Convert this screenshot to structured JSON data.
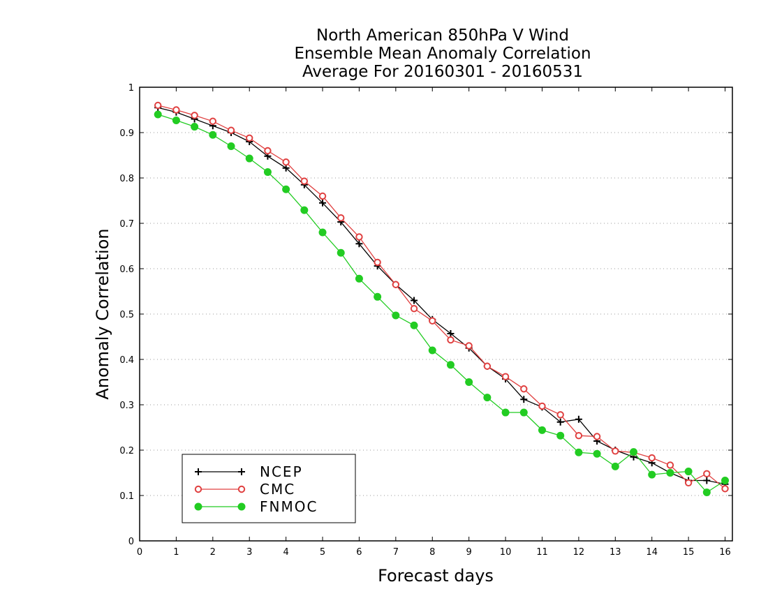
{
  "chart_data": {
    "type": "line",
    "title": [
      "North American 850hPa V Wind",
      "Ensemble Mean Anomaly Correlation",
      "Average For 20160301 - 20160531"
    ],
    "xlabel": "Forecast days",
    "ylabel": "Anomaly Correlation",
    "xlim": [
      0,
      16.2
    ],
    "ylim": [
      0,
      1
    ],
    "xticks": [
      0,
      1,
      2,
      3,
      4,
      5,
      6,
      7,
      8,
      9,
      10,
      11,
      12,
      13,
      14,
      15,
      16
    ],
    "yticks": [
      0,
      0.1,
      0.2,
      0.3,
      0.4,
      0.5,
      0.6,
      0.7,
      0.8,
      0.9,
      1
    ],
    "ytick_labels": [
      "0",
      "0.1",
      "0.2",
      "0.3",
      "0.4",
      "0.5",
      "0.6",
      "0.7",
      "0.8",
      "0.9",
      "1"
    ],
    "grid": "horizontal dotted",
    "legend_position": "bottom-left",
    "x": [
      0.5,
      1,
      1.5,
      2,
      2.5,
      3,
      3.5,
      4,
      4.5,
      5,
      5.5,
      6,
      6.5,
      7,
      7.5,
      8,
      8.5,
      9,
      9.5,
      10,
      10.5,
      11,
      11.5,
      12,
      12.5,
      13,
      13.5,
      14,
      14.5,
      15,
      15.5,
      16
    ],
    "series": [
      {
        "name": "NCEP",
        "color": "#000000",
        "marker": "plus",
        "values": [
          0.955,
          0.945,
          0.93,
          0.915,
          0.9,
          0.88,
          0.848,
          0.822,
          0.785,
          0.745,
          0.703,
          0.655,
          0.606,
          0.565,
          0.53,
          0.488,
          0.457,
          0.425,
          0.385,
          0.357,
          0.312,
          0.295,
          0.262,
          0.268,
          0.22,
          0.2,
          0.185,
          0.172,
          0.15,
          0.133,
          0.133,
          0.125
        ]
      },
      {
        "name": "CMC",
        "color": "#e04040",
        "marker": "open-circle",
        "values": [
          0.96,
          0.95,
          0.938,
          0.925,
          0.905,
          0.888,
          0.86,
          0.835,
          0.793,
          0.76,
          0.712,
          0.67,
          0.614,
          0.565,
          0.512,
          0.485,
          0.443,
          0.43,
          0.385,
          0.362,
          0.335,
          0.297,
          0.278,
          0.232,
          0.23,
          0.198,
          0.195,
          0.183,
          0.167,
          0.128,
          0.148,
          0.115
        ]
      },
      {
        "name": "FNMOC",
        "color": "#22cc22",
        "marker": "filled-circle",
        "values": [
          0.94,
          0.927,
          0.913,
          0.895,
          0.87,
          0.843,
          0.813,
          0.775,
          0.729,
          0.68,
          0.635,
          0.578,
          0.538,
          0.497,
          0.475,
          0.42,
          0.388,
          0.35,
          0.316,
          0.283,
          0.283,
          0.244,
          0.232,
          0.195,
          0.192,
          0.164,
          0.196,
          0.146,
          0.15,
          0.153,
          0.107,
          0.133
        ]
      }
    ]
  }
}
